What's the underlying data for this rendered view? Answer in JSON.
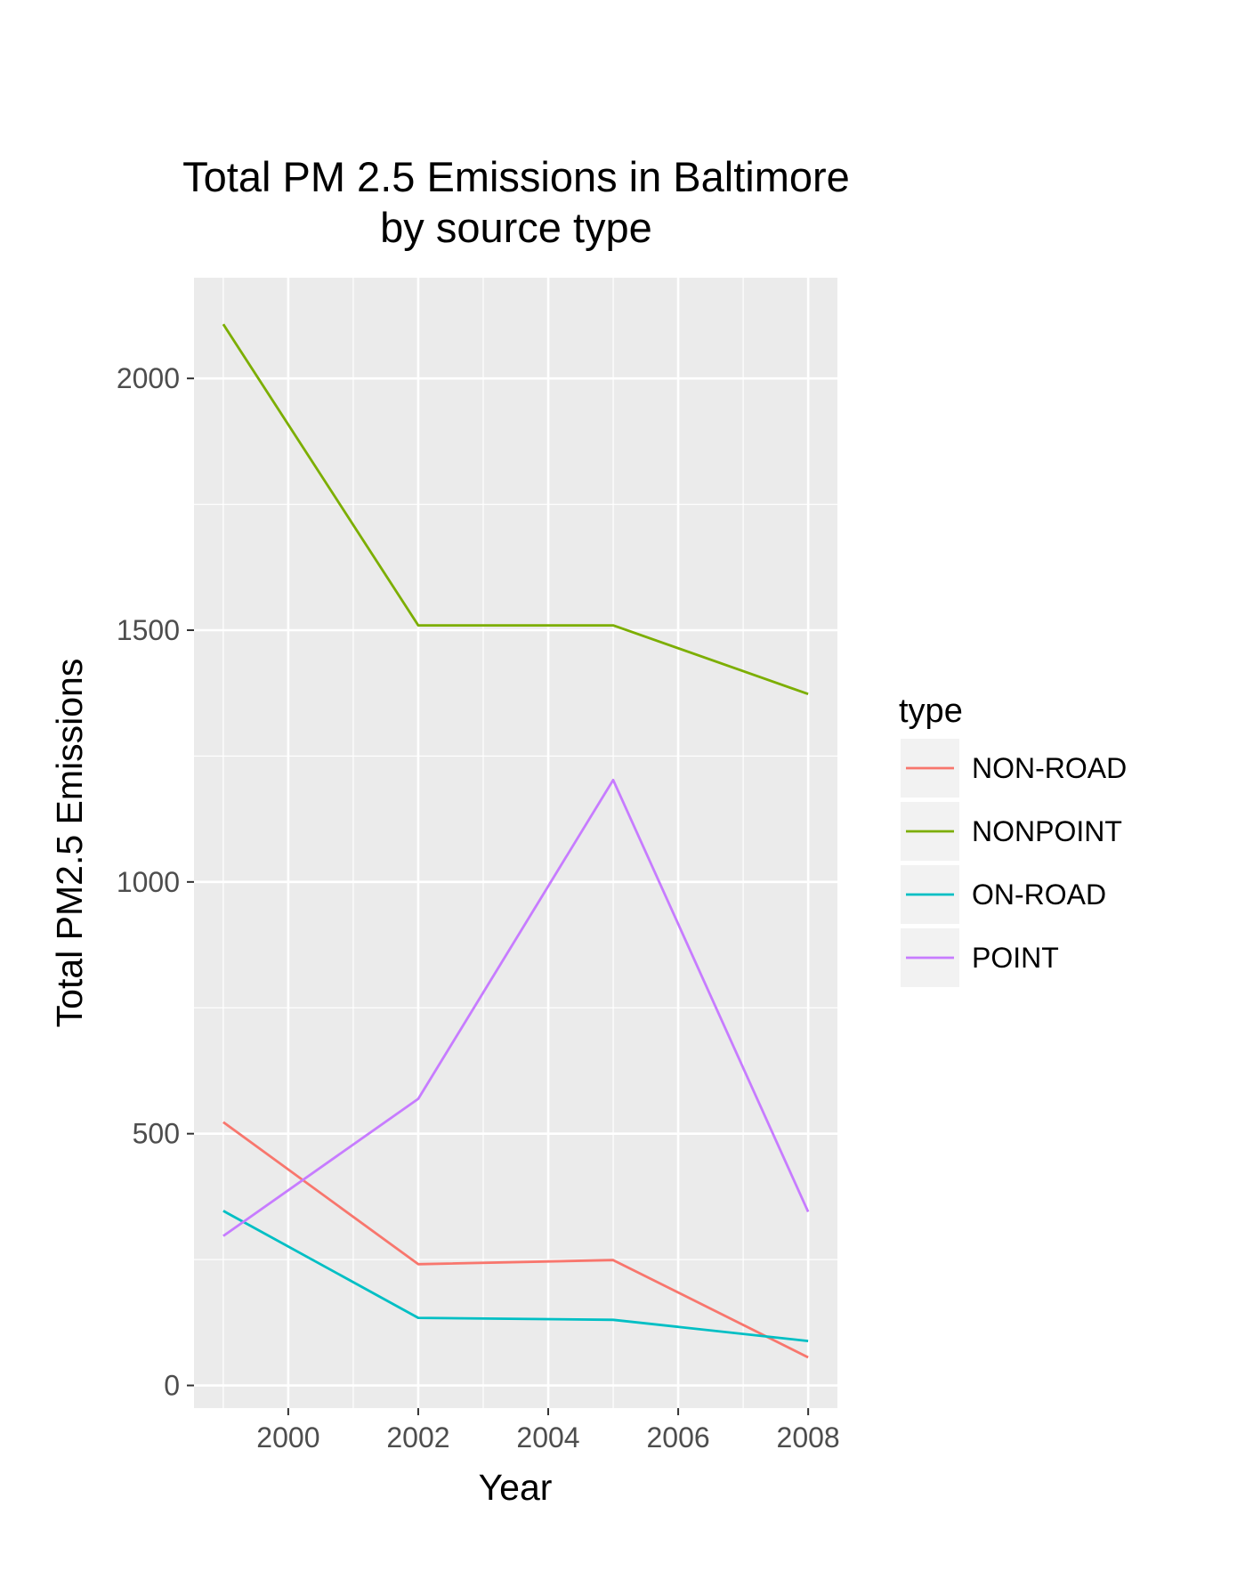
{
  "chart_data": {
    "type": "line",
    "title": [
      "Total PM 2.5 Emissions in Baltimore",
      "by source type"
    ],
    "xlabel": "Year",
    "ylabel": "Total PM2.5 Emissions",
    "x": [
      1999,
      2002,
      2005,
      2008
    ],
    "xlim": [
      1998.55,
      2008.45
    ],
    "ylim": [
      -45,
      2200
    ],
    "xticks": [
      2000,
      2002,
      2004,
      2006,
      2008
    ],
    "yticks": [
      0,
      500,
      1000,
      1500,
      2000
    ],
    "grid": true,
    "legend": {
      "title": "type",
      "position": "right"
    },
    "series": [
      {
        "name": "NON-ROAD",
        "color": "#F8766D",
        "values": [
          522.9,
          240.8,
          248.9,
          55.8
        ]
      },
      {
        "name": "NONPOINT",
        "color": "#7CAE00",
        "values": [
          2107.6,
          1509.5,
          1509.5,
          1373.2
        ]
      },
      {
        "name": "ON-ROAD",
        "color": "#00BFC4",
        "values": [
          346.8,
          134.3,
          130.4,
          88.3
        ]
      },
      {
        "name": "POINT",
        "color": "#C77CFF",
        "values": [
          296.8,
          569.3,
          1202.5,
          344.98
        ]
      }
    ]
  }
}
